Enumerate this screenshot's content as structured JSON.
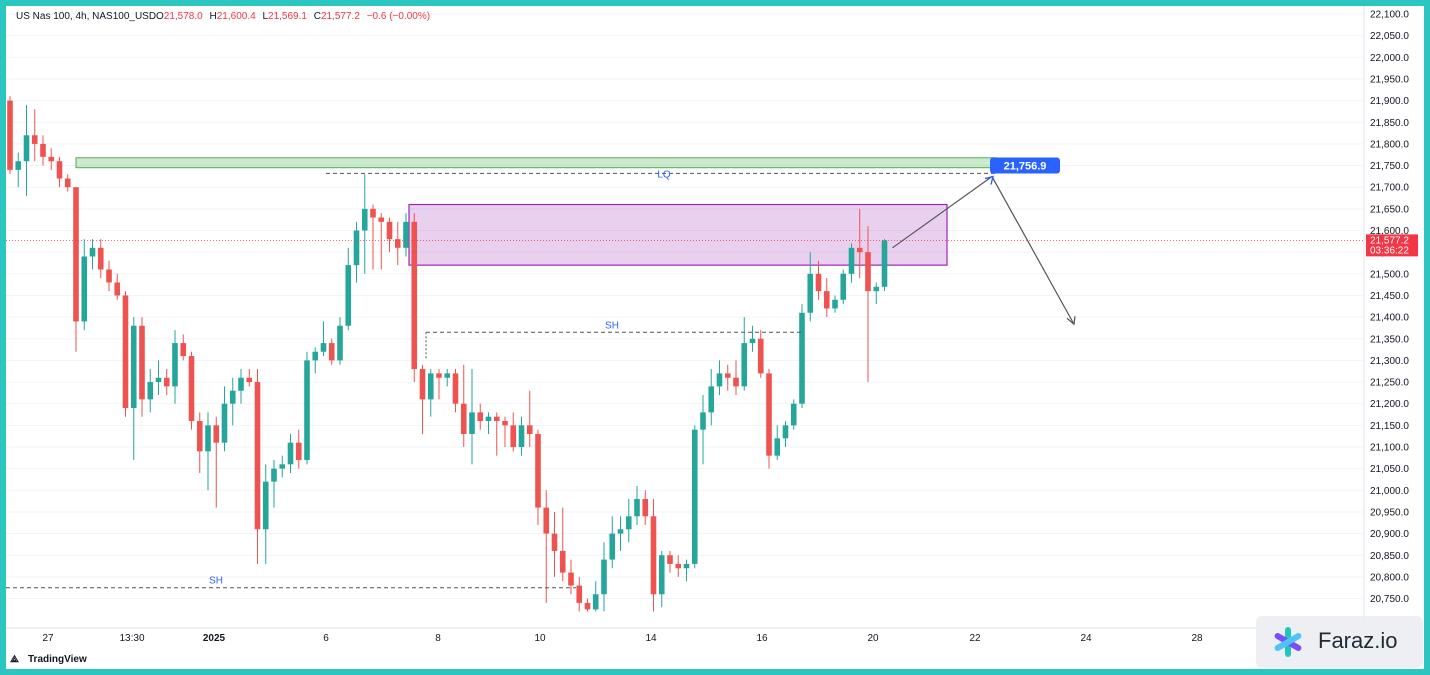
{
  "header": {
    "symbol": "US Nas 100, 4h, NAS100_USD",
    "open_label": "O",
    "open": "21,578.0",
    "high_label": "H",
    "high": "21,600.4",
    "low_label": "L",
    "low": "21,569.1",
    "close_label": "C",
    "close": "21,577.2",
    "change": "−0.6 (−0.00%)"
  },
  "price_axis": {
    "ticks": [
      "22,100.0",
      "22,050.0",
      "22,000.0",
      "21,950.0",
      "21,900.0",
      "21,850.0",
      "21,800.0",
      "21,750.0",
      "21,700.0",
      "21,650.0",
      "21,600.0",
      "21,550.0",
      "21,500.0",
      "21,450.0",
      "21,400.0",
      "21,350.0",
      "21,300.0",
      "21,250.0",
      "21,200.0",
      "21,150.0",
      "21,100.0",
      "21,050.0",
      "21,000.0",
      "20,950.0",
      "20,900.0",
      "20,850.0",
      "20,800.0",
      "20,750.0"
    ],
    "current_price": "21,577.2",
    "countdown": "03:36:22",
    "target_label": "21,756.9"
  },
  "time_axis": {
    "labels": [
      "27",
      "13:30",
      "2025",
      "6",
      "8",
      "10",
      "14",
      "16",
      "20",
      "22",
      "24",
      "28"
    ]
  },
  "chart_data": {
    "type": "candlestick",
    "symbol": "NAS100_USD",
    "interval": "4h",
    "y_range": [
      20720,
      22110
    ],
    "current_price": 21577.2,
    "candles": [
      {
        "o": 21900,
        "h": 21910,
        "l": 21730,
        "c": 21740
      },
      {
        "o": 21740,
        "h": 21780,
        "l": 21700,
        "c": 21760
      },
      {
        "o": 21760,
        "h": 21890,
        "l": 21680,
        "c": 21820
      },
      {
        "o": 21820,
        "h": 21880,
        "l": 21760,
        "c": 21800
      },
      {
        "o": 21800,
        "h": 21820,
        "l": 21750,
        "c": 21770
      },
      {
        "o": 21770,
        "h": 21790,
        "l": 21740,
        "c": 21760
      },
      {
        "o": 21760,
        "h": 21770,
        "l": 21700,
        "c": 21720
      },
      {
        "o": 21720,
        "h": 21730,
        "l": 21690,
        "c": 21700
      },
      {
        "o": 21700,
        "h": 21700,
        "l": 21320,
        "c": 21390
      },
      {
        "o": 21390,
        "h": 21580,
        "l": 21370,
        "c": 21540
      },
      {
        "o": 21540,
        "h": 21580,
        "l": 21510,
        "c": 21560
      },
      {
        "o": 21560,
        "h": 21580,
        "l": 21490,
        "c": 21510
      },
      {
        "o": 21510,
        "h": 21530,
        "l": 21460,
        "c": 21480
      },
      {
        "o": 21480,
        "h": 21500,
        "l": 21440,
        "c": 21450
      },
      {
        "o": 21450,
        "h": 21460,
        "l": 21170,
        "c": 21190
      },
      {
        "o": 21190,
        "h": 21400,
        "l": 21070,
        "c": 21380
      },
      {
        "o": 21380,
        "h": 21400,
        "l": 21170,
        "c": 21210
      },
      {
        "o": 21210,
        "h": 21280,
        "l": 21180,
        "c": 21250
      },
      {
        "o": 21250,
        "h": 21300,
        "l": 21220,
        "c": 21260
      },
      {
        "o": 21260,
        "h": 21280,
        "l": 21220,
        "c": 21240
      },
      {
        "o": 21240,
        "h": 21370,
        "l": 21200,
        "c": 21340
      },
      {
        "o": 21340,
        "h": 21360,
        "l": 21300,
        "c": 21310
      },
      {
        "o": 21310,
        "h": 21320,
        "l": 21140,
        "c": 21160
      },
      {
        "o": 21160,
        "h": 21180,
        "l": 21040,
        "c": 21090
      },
      {
        "o": 21090,
        "h": 21180,
        "l": 21000,
        "c": 21150
      },
      {
        "o": 21150,
        "h": 21170,
        "l": 20960,
        "c": 21110
      },
      {
        "o": 21110,
        "h": 21240,
        "l": 21090,
        "c": 21200
      },
      {
        "o": 21200,
        "h": 21260,
        "l": 21150,
        "c": 21230
      },
      {
        "o": 21230,
        "h": 21280,
        "l": 21200,
        "c": 21260
      },
      {
        "o": 21260,
        "h": 21280,
        "l": 21240,
        "c": 21250
      },
      {
        "o": 21250,
        "h": 21280,
        "l": 20830,
        "c": 20910
      },
      {
        "o": 20910,
        "h": 21060,
        "l": 20830,
        "c": 21020
      },
      {
        "o": 21020,
        "h": 21070,
        "l": 20960,
        "c": 21050
      },
      {
        "o": 21050,
        "h": 21080,
        "l": 21030,
        "c": 21060
      },
      {
        "o": 21060,
        "h": 21130,
        "l": 21040,
        "c": 21110
      },
      {
        "o": 21110,
        "h": 21140,
        "l": 21050,
        "c": 21070
      },
      {
        "o": 21070,
        "h": 21320,
        "l": 21060,
        "c": 21300
      },
      {
        "o": 21300,
        "h": 21330,
        "l": 21270,
        "c": 21320
      },
      {
        "o": 21320,
        "h": 21390,
        "l": 21310,
        "c": 21340
      },
      {
        "o": 21340,
        "h": 21350,
        "l": 21290,
        "c": 21300
      },
      {
        "o": 21300,
        "h": 21400,
        "l": 21290,
        "c": 21380
      },
      {
        "o": 21380,
        "h": 21560,
        "l": 21370,
        "c": 21520
      },
      {
        "o": 21520,
        "h": 21620,
        "l": 21480,
        "c": 21600
      },
      {
        "o": 21600,
        "h": 21730,
        "l": 21500,
        "c": 21650
      },
      {
        "o": 21650,
        "h": 21660,
        "l": 21510,
        "c": 21630
      },
      {
        "o": 21630,
        "h": 21640,
        "l": 21510,
        "c": 21620
      },
      {
        "o": 21620,
        "h": 21630,
        "l": 21550,
        "c": 21580
      },
      {
        "o": 21580,
        "h": 21620,
        "l": 21520,
        "c": 21560
      },
      {
        "o": 21560,
        "h": 21640,
        "l": 21540,
        "c": 21620
      },
      {
        "o": 21620,
        "h": 21640,
        "l": 21250,
        "c": 21280
      },
      {
        "o": 21280,
        "h": 21290,
        "l": 21130,
        "c": 21210
      },
      {
        "o": 21210,
        "h": 21280,
        "l": 21170,
        "c": 21270
      },
      {
        "o": 21270,
        "h": 21280,
        "l": 21210,
        "c": 21260
      },
      {
        "o": 21260,
        "h": 21280,
        "l": 21240,
        "c": 21270
      },
      {
        "o": 21270,
        "h": 21280,
        "l": 21180,
        "c": 21200
      },
      {
        "o": 21200,
        "h": 21290,
        "l": 21100,
        "c": 21130
      },
      {
        "o": 21130,
        "h": 21280,
        "l": 21060,
        "c": 21180
      },
      {
        "o": 21180,
        "h": 21200,
        "l": 21140,
        "c": 21160
      },
      {
        "o": 21160,
        "h": 21180,
        "l": 21130,
        "c": 21170
      },
      {
        "o": 21170,
        "h": 21180,
        "l": 21080,
        "c": 21160
      },
      {
        "o": 21160,
        "h": 21170,
        "l": 21100,
        "c": 21150
      },
      {
        "o": 21150,
        "h": 21180,
        "l": 21090,
        "c": 21100
      },
      {
        "o": 21100,
        "h": 21170,
        "l": 21080,
        "c": 21150
      },
      {
        "o": 21150,
        "h": 21230,
        "l": 21100,
        "c": 21130
      },
      {
        "o": 21130,
        "h": 21140,
        "l": 20920,
        "c": 20960
      },
      {
        "o": 20960,
        "h": 21000,
        "l": 20740,
        "c": 20900
      },
      {
        "o": 20900,
        "h": 20950,
        "l": 20800,
        "c": 20860
      },
      {
        "o": 20860,
        "h": 20960,
        "l": 20790,
        "c": 20810
      },
      {
        "o": 20810,
        "h": 20840,
        "l": 20760,
        "c": 20780
      },
      {
        "o": 20780,
        "h": 20800,
        "l": 20720,
        "c": 20740
      },
      {
        "o": 20740,
        "h": 20750,
        "l": 20720,
        "c": 20725
      },
      {
        "o": 20725,
        "h": 20790,
        "l": 20720,
        "c": 20760
      },
      {
        "o": 20760,
        "h": 20880,
        "l": 20720,
        "c": 20840
      },
      {
        "o": 20840,
        "h": 20940,
        "l": 20820,
        "c": 20900
      },
      {
        "o": 20900,
        "h": 20940,
        "l": 20860,
        "c": 20910
      },
      {
        "o": 20910,
        "h": 20980,
        "l": 20880,
        "c": 20940
      },
      {
        "o": 20940,
        "h": 21010,
        "l": 20920,
        "c": 20980
      },
      {
        "o": 20980,
        "h": 21000,
        "l": 20920,
        "c": 20940
      },
      {
        "o": 20940,
        "h": 20980,
        "l": 20720,
        "c": 20760
      },
      {
        "o": 20760,
        "h": 20860,
        "l": 20730,
        "c": 20850
      },
      {
        "o": 20850,
        "h": 20860,
        "l": 20810,
        "c": 20830
      },
      {
        "o": 20830,
        "h": 20850,
        "l": 20800,
        "c": 20820
      },
      {
        "o": 20820,
        "h": 20840,
        "l": 20790,
        "c": 20830
      },
      {
        "o": 20830,
        "h": 21150,
        "l": 20820,
        "c": 21140
      },
      {
        "o": 21140,
        "h": 21220,
        "l": 21060,
        "c": 21180
      },
      {
        "o": 21180,
        "h": 21280,
        "l": 21150,
        "c": 21240
      },
      {
        "o": 21240,
        "h": 21300,
        "l": 21220,
        "c": 21270
      },
      {
        "o": 21270,
        "h": 21290,
        "l": 21230,
        "c": 21260
      },
      {
        "o": 21260,
        "h": 21300,
        "l": 21220,
        "c": 21240
      },
      {
        "o": 21240,
        "h": 21400,
        "l": 21230,
        "c": 21340
      },
      {
        "o": 21340,
        "h": 21380,
        "l": 21320,
        "c": 21350
      },
      {
        "o": 21350,
        "h": 21370,
        "l": 21260,
        "c": 21270
      },
      {
        "o": 21270,
        "h": 21280,
        "l": 21050,
        "c": 21080
      },
      {
        "o": 21080,
        "h": 21150,
        "l": 21070,
        "c": 21120
      },
      {
        "o": 21120,
        "h": 21160,
        "l": 21100,
        "c": 21150
      },
      {
        "o": 21150,
        "h": 21210,
        "l": 21140,
        "c": 21200
      },
      {
        "o": 21200,
        "h": 21430,
        "l": 21190,
        "c": 21410
      },
      {
        "o": 21410,
        "h": 21550,
        "l": 21390,
        "c": 21500
      },
      {
        "o": 21500,
        "h": 21530,
        "l": 21440,
        "c": 21460
      },
      {
        "o": 21460,
        "h": 21490,
        "l": 21400,
        "c": 21420
      },
      {
        "o": 21420,
        "h": 21450,
        "l": 21410,
        "c": 21440
      },
      {
        "o": 21440,
        "h": 21510,
        "l": 21430,
        "c": 21500
      },
      {
        "o": 21500,
        "h": 21570,
        "l": 21480,
        "c": 21560
      },
      {
        "o": 21560,
        "h": 21650,
        "l": 21490,
        "c": 21550
      },
      {
        "o": 21550,
        "h": 21610,
        "l": 21250,
        "c": 21460
      },
      {
        "o": 21460,
        "h": 21480,
        "l": 21430,
        "c": 21470
      },
      {
        "o": 21470,
        "h": 21580,
        "l": 21460,
        "c": 21577
      }
    ],
    "annotations": {
      "lq_label": "LQ",
      "lq_price": 21732,
      "sh_upper_label": "SH",
      "sh_upper_price": 21365,
      "sh_lower_label": "SH",
      "sh_lower_price": 20775,
      "green_zone": [
        21745,
        21768
      ],
      "purple_zone": [
        21520,
        21660
      ],
      "target_price": 21756.9,
      "projection_end_price": 21365
    }
  },
  "colors": {
    "up": "#26a69a",
    "down": "#ef5350",
    "green_zone": "#4caf50",
    "purple_zone": "#9c27b0",
    "badge_blue": "#2962ff",
    "price_red": "#f23645"
  },
  "branding": {
    "tradingview": "TradingView",
    "watermark": "Faraz.io"
  }
}
